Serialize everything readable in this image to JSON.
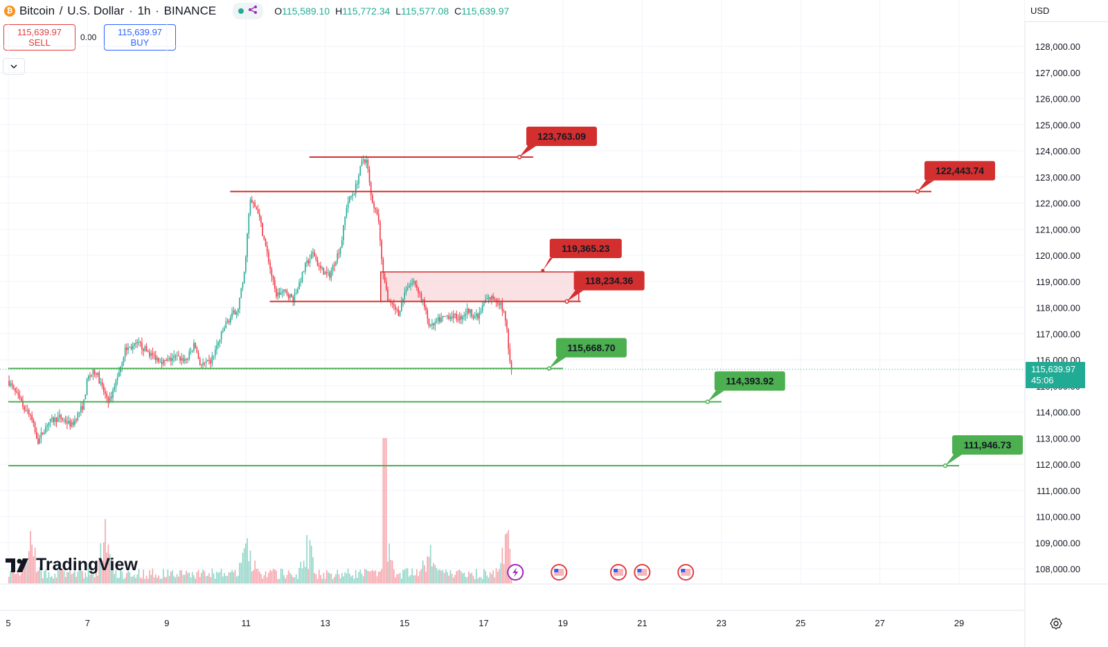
{
  "header": {
    "symbol_name": "Bitcoin",
    "quote_name": "U.S. Dollar",
    "interval": "1h",
    "exchange": "BINANCE",
    "sep_slash": "/",
    "sep_dot": "·",
    "open_label": "O",
    "open_value": "115,589.10",
    "high_label": "H",
    "high_value": "115,772.34",
    "low_label": "L",
    "low_value": "115,577.08",
    "close_label": "C",
    "close_value": "115,639.97"
  },
  "trade": {
    "sell_price": "115,639.97",
    "sell_label": "SELL",
    "buy_price": "115,639.97",
    "buy_label": "BUY",
    "spread": "0.00"
  },
  "currency": "USD",
  "last_price": "115,639.97",
  "countdown": "45:06",
  "logo_text": "TradingView",
  "colors": {
    "up": "#22ab94",
    "down": "#f23645",
    "resistance": "#d32f2f",
    "support": "#4caf50",
    "zone_fill": "#f8d7da",
    "grid": "#f0f3fa"
  },
  "chart_data": {
    "type": "candlestick",
    "title": "Bitcoin / U.S. Dollar · 1h · BINANCE",
    "ylim": [
      107600,
      129000
    ],
    "y_ticks": [
      108000,
      109000,
      110000,
      111000,
      112000,
      113000,
      114000,
      115000,
      116000,
      117000,
      118000,
      119000,
      120000,
      121000,
      122000,
      123000,
      124000,
      125000,
      126000,
      127000,
      128000
    ],
    "y_tick_labels": [
      "108,000.00",
      "109,000.00",
      "110,000.00",
      "111,000.00",
      "112,000.00",
      "113,000.00",
      "114,000.00",
      "115,000.00",
      "116,000.00",
      "117,000.00",
      "118,000.00",
      "119,000.00",
      "120,000.00",
      "121,000.00",
      "122,000.00",
      "123,000.00",
      "124,000.00",
      "125,000.00",
      "126,000.00",
      "127,000.00",
      "128,000.00"
    ],
    "xlim": [
      5,
      30.7
    ],
    "x_ticks": [
      5,
      7,
      9,
      11,
      13,
      15,
      17,
      19,
      21,
      23,
      25,
      27,
      29
    ],
    "x_tick_labels": [
      "5",
      "7",
      "9",
      "11",
      "13",
      "15",
      "17",
      "19",
      "21",
      "23",
      "25",
      "27",
      "29"
    ],
    "price_path": [
      [
        5.0,
        115200
      ],
      [
        5.3,
        114400
      ],
      [
        5.55,
        113900
      ],
      [
        5.75,
        112900
      ],
      [
        6.0,
        113600
      ],
      [
        6.3,
        113800
      ],
      [
        6.6,
        113500
      ],
      [
        6.9,
        114300
      ],
      [
        7.0,
        115300
      ],
      [
        7.2,
        115600
      ],
      [
        7.4,
        114800
      ],
      [
        7.55,
        114400
      ],
      [
        7.8,
        115600
      ],
      [
        7.95,
        116400
      ],
      [
        8.3,
        116600
      ],
      [
        8.6,
        116200
      ],
      [
        8.95,
        115900
      ],
      [
        9.2,
        116100
      ],
      [
        9.5,
        116000
      ],
      [
        9.7,
        116600
      ],
      [
        9.85,
        115800
      ],
      [
        10.1,
        115900
      ],
      [
        10.5,
        117400
      ],
      [
        10.8,
        118000
      ],
      [
        10.95,
        119200
      ],
      [
        11.1,
        122100
      ],
      [
        11.3,
        121700
      ],
      [
        11.5,
        120300
      ],
      [
        11.75,
        118500
      ],
      [
        12.0,
        118600
      ],
      [
        12.2,
        118300
      ],
      [
        12.5,
        119600
      ],
      [
        12.7,
        120100
      ],
      [
        12.85,
        119500
      ],
      [
        13.1,
        119200
      ],
      [
        13.4,
        120400
      ],
      [
        13.55,
        122000
      ],
      [
        13.75,
        122500
      ],
      [
        13.95,
        123700
      ],
      [
        14.05,
        123600
      ],
      [
        14.15,
        122300
      ],
      [
        14.35,
        121300
      ],
      [
        14.45,
        119300
      ],
      [
        14.6,
        118200
      ],
      [
        14.85,
        117800
      ],
      [
        15.05,
        118800
      ],
      [
        15.25,
        119000
      ],
      [
        15.45,
        118300
      ],
      [
        15.65,
        117200
      ],
      [
        15.85,
        117500
      ],
      [
        16.1,
        117700
      ],
      [
        16.4,
        117600
      ],
      [
        16.6,
        117900
      ],
      [
        16.85,
        117600
      ],
      [
        17.05,
        118300
      ],
      [
        17.25,
        118400
      ],
      [
        17.4,
        118200
      ],
      [
        17.55,
        117600
      ],
      [
        17.65,
        116100
      ],
      [
        17.72,
        115639.97
      ]
    ],
    "candles_approx_count": 330,
    "volume_spike_positions": [
      5.55,
      7.45,
      11.05,
      12.55,
      14.5,
      15.6,
      17.6
    ],
    "horizontal_levels": [
      {
        "label": "123,763.09",
        "value": 123763.09,
        "kind": "resistance",
        "x_start": 12.6,
        "x_end": 18.25
      },
      {
        "label": "122,443.74",
        "value": 122443.74,
        "kind": "resistance",
        "x_start": 10.6,
        "x_end": 28.3
      },
      {
        "label": "118,234.36",
        "value": 118234.36,
        "kind": "resistance",
        "x_start": 11.6,
        "x_end": 19.45
      },
      {
        "label": "115,668.70",
        "value": 115668.7,
        "kind": "support",
        "x_start": 5.0,
        "x_end": 19.0
      },
      {
        "label": "114,393.92",
        "value": 114393.92,
        "kind": "support",
        "x_start": 5.0,
        "x_end": 23.0
      },
      {
        "label": "111,946.73",
        "value": 111946.73,
        "kind": "support",
        "x_start": 5.0,
        "x_end": 29.0
      }
    ],
    "zones": [
      {
        "label": "119,365.23",
        "top": 119365.23,
        "bottom": 118234.36,
        "x_start": 14.4,
        "x_end": 19.4,
        "kind": "resistance"
      }
    ],
    "event_icons_x": [
      17.8,
      18.9,
      20.4,
      21.0,
      22.1
    ]
  }
}
